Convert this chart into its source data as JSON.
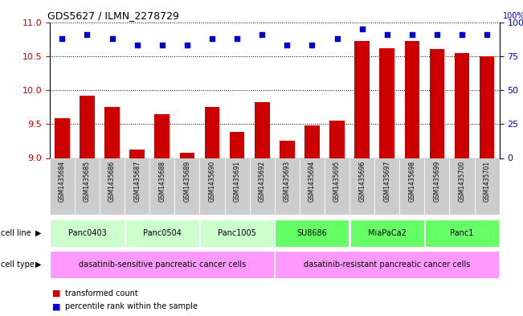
{
  "title": "GDS5627 / ILMN_2278729",
  "samples": [
    "GSM1435684",
    "GSM1435685",
    "GSM1435686",
    "GSM1435687",
    "GSM1435688",
    "GSM1435689",
    "GSM1435690",
    "GSM1435691",
    "GSM1435692",
    "GSM1435693",
    "GSM1435694",
    "GSM1435695",
    "GSM1435696",
    "GSM1435697",
    "GSM1435698",
    "GSM1435699",
    "GSM1435700",
    "GSM1435701"
  ],
  "bar_values": [
    9.58,
    9.92,
    9.75,
    9.12,
    9.65,
    9.08,
    9.75,
    9.38,
    9.82,
    9.25,
    9.48,
    9.55,
    10.72,
    10.62,
    10.72,
    10.6,
    10.55,
    10.5
  ],
  "percentile_values": [
    88,
    91,
    88,
    83,
    83,
    83,
    88,
    88,
    91,
    83,
    83,
    88,
    95,
    91,
    91,
    91,
    91,
    91
  ],
  "bar_color": "#cc0000",
  "percentile_color": "#0000cc",
  "ylim_left": [
    9.0,
    11.0
  ],
  "ylim_right": [
    0,
    100
  ],
  "yticks_left": [
    9.0,
    9.5,
    10.0,
    10.5,
    11.0
  ],
  "yticks_right": [
    0,
    25,
    50,
    75,
    100
  ],
  "cell_lines": [
    {
      "name": "Panc0403",
      "start": 0,
      "end": 2,
      "color": "#ccffcc"
    },
    {
      "name": "Panc0504",
      "start": 3,
      "end": 5,
      "color": "#ccffcc"
    },
    {
      "name": "Panc1005",
      "start": 6,
      "end": 8,
      "color": "#ccffcc"
    },
    {
      "name": "SU8686",
      "start": 9,
      "end": 11,
      "color": "#66ff66"
    },
    {
      "name": "MiaPaCa2",
      "start": 12,
      "end": 14,
      "color": "#66ff66"
    },
    {
      "name": "Panc1",
      "start": 15,
      "end": 17,
      "color": "#66ff66"
    }
  ],
  "cell_types": [
    {
      "name": "dasatinib-sensitive pancreatic cancer cells",
      "start": 0,
      "end": 8,
      "color": "#ff99ff"
    },
    {
      "name": "dasatinib-resistant pancreatic cancer cells",
      "start": 9,
      "end": 17,
      "color": "#ff99ff"
    }
  ],
  "legend_bar_label": "transformed count",
  "legend_pct_label": "percentile rank within the sample",
  "cell_line_label": "cell line",
  "cell_type_label": "cell type",
  "bg_color": "#ffffff",
  "grid_color": "#000000",
  "tick_label_bg": "#cccccc"
}
